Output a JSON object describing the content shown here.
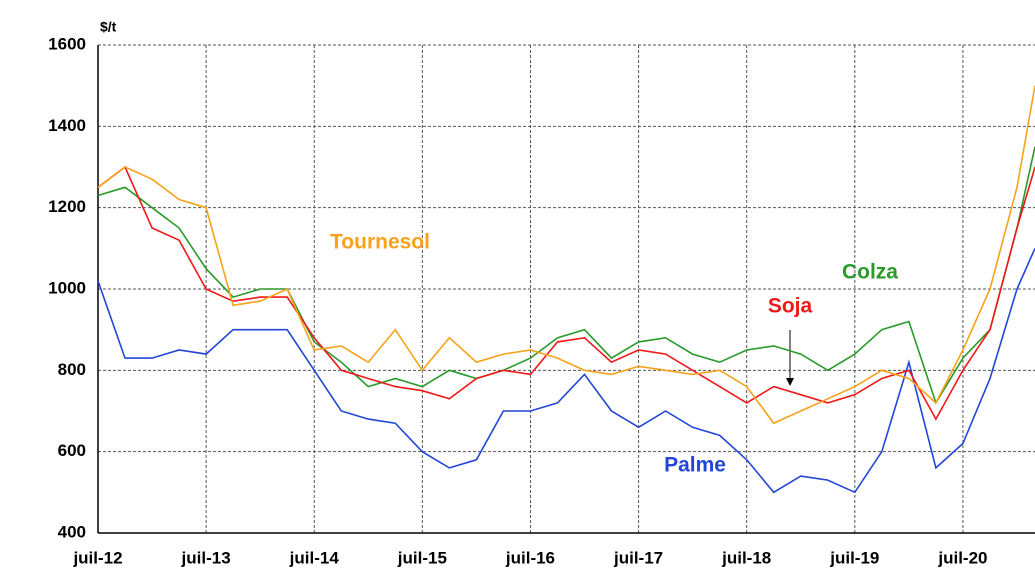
{
  "chart_data": {
    "type": "line",
    "y_label": "$/t",
    "x": [
      "2012-07",
      "2012-10",
      "2013-01",
      "2013-04",
      "2013-07",
      "2013-10",
      "2014-01",
      "2014-04",
      "2014-07",
      "2014-10",
      "2015-01",
      "2015-04",
      "2015-07",
      "2015-10",
      "2016-01",
      "2016-04",
      "2016-07",
      "2016-10",
      "2017-01",
      "2017-04",
      "2017-07",
      "2017-10",
      "2018-01",
      "2018-04",
      "2018-07",
      "2018-10",
      "2019-01",
      "2019-04",
      "2019-07",
      "2019-10",
      "2020-01",
      "2020-04",
      "2020-07",
      "2020-10",
      "2021-01",
      "2021-03"
    ],
    "series": [
      {
        "name": "Palme",
        "color": "#2246d6",
        "values": [
          1020,
          830,
          830,
          850,
          840,
          900,
          900,
          900,
          800,
          700,
          680,
          670,
          600,
          560,
          580,
          700,
          700,
          720,
          790,
          700,
          660,
          700,
          660,
          640,
          580,
          500,
          540,
          530,
          500,
          600,
          820,
          560,
          620,
          780,
          1000,
          1100
        ]
      },
      {
        "name": "Colza",
        "color": "#2a9a2a",
        "values": [
          1230,
          1250,
          1200,
          1150,
          1050,
          980,
          1000,
          1000,
          870,
          820,
          760,
          780,
          760,
          800,
          780,
          800,
          830,
          880,
          900,
          830,
          870,
          880,
          840,
          820,
          850,
          860,
          840,
          800,
          840,
          900,
          920,
          720,
          830,
          900,
          1150,
          1350
        ]
      },
      {
        "name": "Soja",
        "color": "#f01818",
        "values": [
          1250,
          1300,
          1150,
          1120,
          1000,
          970,
          980,
          980,
          880,
          800,
          780,
          760,
          750,
          730,
          780,
          800,
          790,
          870,
          880,
          820,
          850,
          840,
          800,
          760,
          720,
          760,
          740,
          720,
          740,
          780,
          800,
          680,
          800,
          900,
          1150,
          1300
        ]
      },
      {
        "name": "Tournesol",
        "color": "#f7a21b",
        "values": [
          1250,
          1300,
          1270,
          1220,
          1200,
          960,
          970,
          1000,
          850,
          860,
          820,
          900,
          800,
          880,
          820,
          840,
          850,
          830,
          800,
          790,
          810,
          800,
          790,
          800,
          760,
          670,
          700,
          730,
          760,
          800,
          780,
          720,
          850,
          1000,
          1250,
          1500
        ]
      }
    ],
    "xlim": [
      "2012-07",
      "2021-03"
    ],
    "xticks": [
      {
        "value": "2012-07",
        "label": "juil-12"
      },
      {
        "value": "2013-07",
        "label": "juil-13"
      },
      {
        "value": "2014-07",
        "label": "juil-14"
      },
      {
        "value": "2015-07",
        "label": "juil-15"
      },
      {
        "value": "2016-07",
        "label": "juil-16"
      },
      {
        "value": "2017-07",
        "label": "juil-17"
      },
      {
        "value": "2018-07",
        "label": "juil-18"
      },
      {
        "value": "2019-07",
        "label": "juil-19"
      },
      {
        "value": "2020-07",
        "label": "juil-20"
      }
    ],
    "ylim": [
      400,
      1600
    ],
    "yticks": [
      400,
      600,
      800,
      1000,
      1200,
      1400,
      1600
    ],
    "grid": true
  }
}
